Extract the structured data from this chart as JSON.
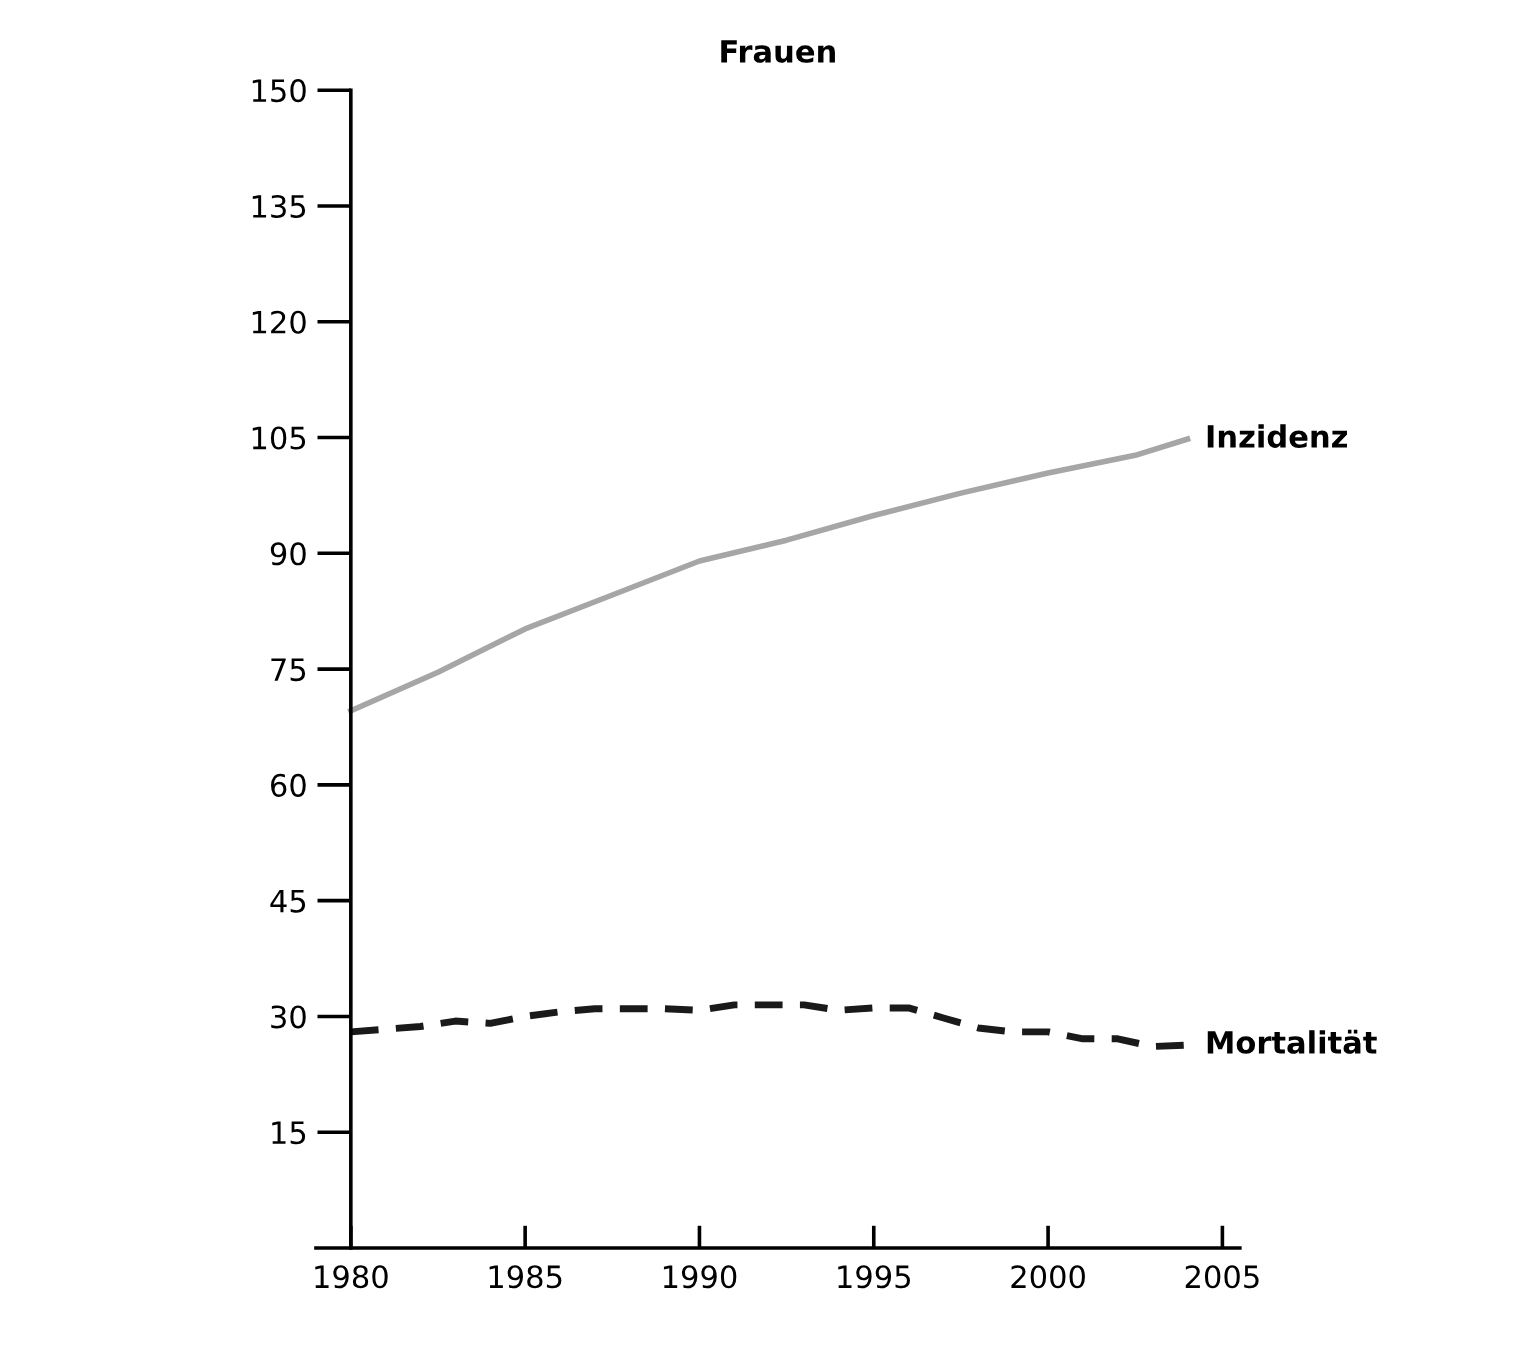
{
  "chart_data": {
    "type": "line",
    "title": "Frauen",
    "x": [
      1980,
      1982,
      1983,
      1984,
      1985,
      1986,
      1987,
      1988,
      1989,
      1990,
      1991,
      1992,
      1993,
      1994,
      1995,
      1996,
      1997,
      1998,
      1999,
      2000,
      2001,
      2002,
      2003,
      2004
    ],
    "series": [
      {
        "name": "Inzidenz",
        "color": "#a6a6a6",
        "line_style": "solid",
        "x": [
          1980,
          1982.5,
          1985,
          1987.5,
          1990,
          1992.5,
          1995,
          1997.5,
          2000,
          2002.5,
          2004
        ],
        "values": [
          69.6,
          74.6,
          80.2,
          84.6,
          89,
          91.7,
          94.9,
          97.8,
          100.4,
          102.7,
          104.8
        ]
      },
      {
        "name": "Mortalität",
        "color": "#1a1a1a",
        "line_style": "dashed",
        "values": [
          28.0,
          28.7,
          29.4,
          29.1,
          30.0,
          30.6,
          31.0,
          31.0,
          31.0,
          30.8,
          31.5,
          31.5,
          31.5,
          30.8,
          31.1,
          31.1,
          29.8,
          28.5,
          28.0,
          28.0,
          27.1,
          27.1,
          26.1,
          26.3
        ]
      }
    ],
    "xlim": [
      1979,
      2005.5
    ],
    "xticks": [
      1980,
      1985,
      1990,
      1995,
      2000,
      2005
    ],
    "ylim": [
      0,
      150
    ],
    "yticks": [
      15,
      30,
      45,
      60,
      75,
      90,
      105,
      120,
      135,
      150
    ],
    "grid": false,
    "legend": false,
    "marker": "none"
  }
}
